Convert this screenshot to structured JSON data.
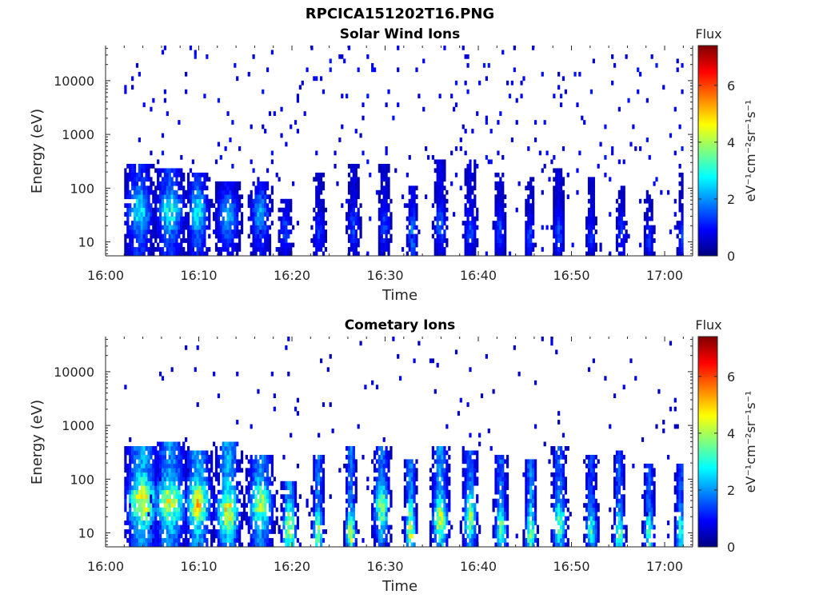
{
  "figure_title": "RPCICA151202T16.PNG",
  "colorbar": {
    "title": "Flux",
    "label": "eV⁻¹cm⁻²sr⁻¹s⁻¹",
    "ticks": [
      "0",
      "2",
      "4",
      "6"
    ],
    "range": [
      0,
      7.4
    ],
    "colormap": [
      "#00007f",
      "#0000ff",
      "#007fff",
      "#00ffff",
      "#7fff7f",
      "#ffff00",
      "#ff7f00",
      "#ff0000",
      "#7f0000"
    ]
  },
  "chart_data": [
    {
      "type": "heatmap",
      "title": "Solar Wind Ions",
      "xlabel": "Time",
      "ylabel": "Energy (eV)",
      "x_ticks": [
        "16:00",
        "16:10",
        "16:20",
        "16:30",
        "16:40",
        "16:50",
        "17:00"
      ],
      "y_ticks": [
        "10",
        "100",
        "1000",
        "10000"
      ],
      "y_scale": "log",
      "xlim_minutes": [
        0,
        63
      ],
      "ylim": [
        5.5,
        45000
      ],
      "data_minutes": [
        2,
        62
      ],
      "bursts": [
        {
          "t": 3.5,
          "emax": 260,
          "peak": 3.4,
          "fluxE": 38,
          "w": 1.6
        },
        {
          "t": 6.8,
          "emax": 240,
          "peak": 3.6,
          "fluxE": 38,
          "w": 1.6
        },
        {
          "t": 9.8,
          "emax": 200,
          "peak": 3.5,
          "fluxE": 36,
          "w": 1.2
        },
        {
          "t": 13.0,
          "emax": 130,
          "peak": 2.7,
          "fluxE": 30,
          "w": 1.4
        },
        {
          "t": 16.5,
          "emax": 130,
          "peak": 2.7,
          "fluxE": 34,
          "w": 1.2
        },
        {
          "t": 19.2,
          "emax": 60,
          "peak": 1.8,
          "fluxE": 15,
          "w": 0.8
        },
        {
          "t": 22.8,
          "emax": 200,
          "peak": 1.6,
          "fluxE": 15,
          "w": 0.8
        },
        {
          "t": 26.5,
          "emax": 300,
          "peak": 1.8,
          "fluxE": 20,
          "w": 0.8
        },
        {
          "t": 29.8,
          "emax": 260,
          "peak": 1.7,
          "fluxE": 20,
          "w": 0.8
        },
        {
          "t": 32.8,
          "emax": 120,
          "peak": 2.4,
          "fluxE": 14,
          "w": 0.6
        },
        {
          "t": 35.8,
          "emax": 350,
          "peak": 2.0,
          "fluxE": 20,
          "w": 0.8
        },
        {
          "t": 39.0,
          "emax": 300,
          "peak": 1.8,
          "fluxE": 18,
          "w": 0.8
        },
        {
          "t": 42.2,
          "emax": 180,
          "peak": 1.8,
          "fluxE": 15,
          "w": 0.7
        },
        {
          "t": 45.4,
          "emax": 150,
          "peak": 1.7,
          "fluxE": 12,
          "w": 0.6
        },
        {
          "t": 48.5,
          "emax": 250,
          "peak": 1.8,
          "fluxE": 15,
          "w": 0.7
        },
        {
          "t": 52.0,
          "emax": 150,
          "peak": 1.6,
          "fluxE": 14,
          "w": 0.6
        },
        {
          "t": 55.2,
          "emax": 120,
          "peak": 1.6,
          "fluxE": 14,
          "w": 0.6
        },
        {
          "t": 58.2,
          "emax": 100,
          "peak": 1.5,
          "fluxE": 12,
          "w": 0.6
        },
        {
          "t": 61.8,
          "emax": 180,
          "peak": 1.6,
          "fluxE": 12,
          "w": 0.6
        }
      ],
      "background_flux": 0.8
    },
    {
      "type": "heatmap",
      "title": "Cometary Ions",
      "xlabel": "Time",
      "ylabel": "Energy (eV)",
      "x_ticks": [
        "16:00",
        "16:10",
        "16:20",
        "16:30",
        "16:40",
        "16:50",
        "17:00"
      ],
      "y_ticks": [
        "10",
        "100",
        "1000",
        "10000"
      ],
      "y_scale": "log",
      "xlim_minutes": [
        0,
        63
      ],
      "ylim": [
        5.5,
        45000
      ],
      "data_minutes": [
        2,
        62
      ],
      "bursts": [
        {
          "t": 3.8,
          "emax": 400,
          "peak": 5.8,
          "fluxE": 38,
          "w": 1.8
        },
        {
          "t": 6.8,
          "emax": 480,
          "peak": 5.4,
          "fluxE": 38,
          "w": 1.8
        },
        {
          "t": 9.8,
          "emax": 350,
          "peak": 5.8,
          "fluxE": 36,
          "w": 1.4
        },
        {
          "t": 13.0,
          "emax": 500,
          "peak": 5.8,
          "fluxE": 25,
          "w": 1.3
        },
        {
          "t": 16.5,
          "emax": 300,
          "peak": 5.0,
          "fluxE": 34,
          "w": 1.4
        },
        {
          "t": 19.6,
          "emax": 90,
          "peak": 5.4,
          "fluxE": 12,
          "w": 0.8
        },
        {
          "t": 22.7,
          "emax": 300,
          "peak": 5.0,
          "fluxE": 10,
          "w": 0.6
        },
        {
          "t": 26.2,
          "emax": 400,
          "peak": 5.0,
          "fluxE": 10,
          "w": 0.6
        },
        {
          "t": 29.5,
          "emax": 450,
          "peak": 4.8,
          "fluxE": 30,
          "w": 0.9
        },
        {
          "t": 32.6,
          "emax": 250,
          "peak": 5.4,
          "fluxE": 12,
          "w": 0.6
        },
        {
          "t": 35.8,
          "emax": 420,
          "peak": 5.4,
          "fluxE": 18,
          "w": 0.9
        },
        {
          "t": 39.0,
          "emax": 350,
          "peak": 4.6,
          "fluxE": 20,
          "w": 0.8
        },
        {
          "t": 42.3,
          "emax": 300,
          "peak": 4.4,
          "fluxE": 12,
          "w": 0.7
        },
        {
          "t": 45.5,
          "emax": 250,
          "peak": 5.2,
          "fluxE": 10,
          "w": 0.6
        },
        {
          "t": 48.6,
          "emax": 450,
          "peak": 4.4,
          "fluxE": 15,
          "w": 0.8
        },
        {
          "t": 52.0,
          "emax": 300,
          "peak": 3.8,
          "fluxE": 12,
          "w": 0.7
        },
        {
          "t": 55.0,
          "emax": 350,
          "peak": 4.4,
          "fluxE": 10,
          "w": 0.6
        },
        {
          "t": 58.2,
          "emax": 200,
          "peak": 4.2,
          "fluxE": 10,
          "w": 0.6
        },
        {
          "t": 61.6,
          "emax": 200,
          "peak": 4.0,
          "fluxE": 10,
          "w": 0.6
        }
      ],
      "background_flux": 0.6
    }
  ]
}
